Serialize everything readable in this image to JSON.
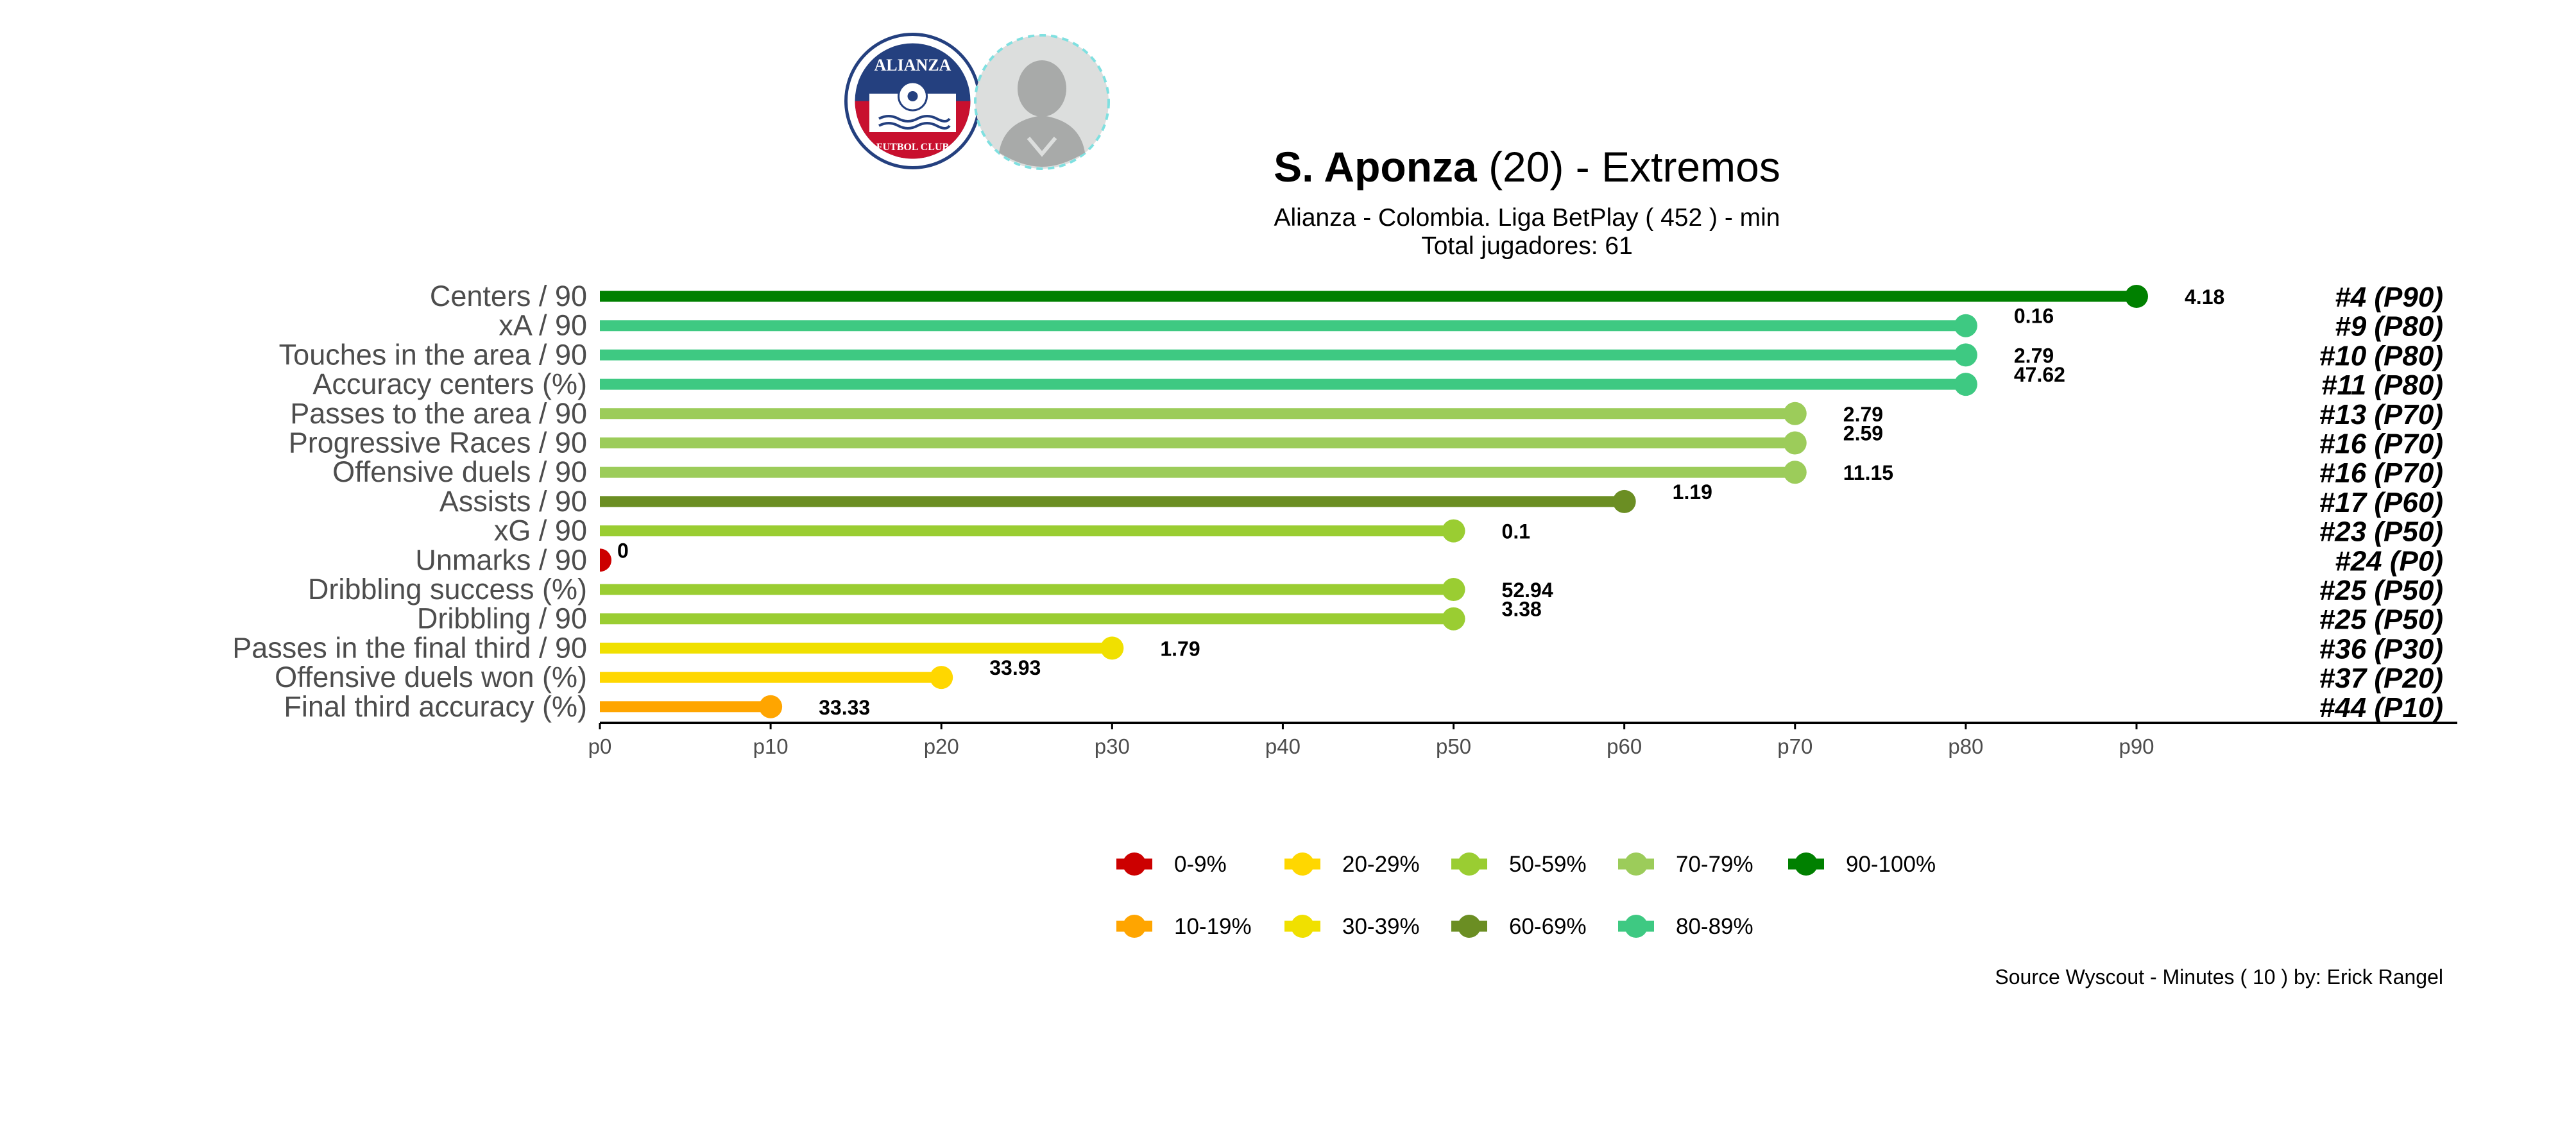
{
  "header": {
    "player_name": "S. Aponza",
    "age_text": "(20)",
    "position_text": "-  Extremos",
    "subtitle": "Alianza  -  Colombia. Liga BetPlay  ( 452 ) - min",
    "total_label": "Total jugadores:  61",
    "logo_text_top": "ALIANZA",
    "logo_text_bottom": "FUTBOL CLUB"
  },
  "source_note": "Source Wyscout - Minutes ( 10 ) by: Erick Rangel",
  "colors": {
    "0-9%": "#cc0000",
    "10-19%": "#ffa500",
    "20-29%": "#ffd700",
    "30-39%": "#f0e000",
    "50-59%": "#9acd32",
    "60-69%": "#6b8e23",
    "70-79%": "#9ccc5a",
    "80-89%": "#3ec982",
    "90-100%": "#008000"
  },
  "chart_data": {
    "type": "lollipop",
    "title": "S. Aponza (20) -  Extremos",
    "xlim": [
      0,
      90
    ],
    "x_ticks": [
      "p0",
      "p10",
      "p20",
      "p30",
      "p40",
      "p50",
      "p60",
      "p70",
      "p80",
      "p90"
    ],
    "legend": {
      "position": "bottom",
      "items": [
        "0-9%",
        "10-19%",
        "20-29%",
        "30-39%",
        "50-59%",
        "60-69%",
        "70-79%",
        "80-89%",
        "90-100%"
      ]
    },
    "rows": [
      {
        "metric": "Centers / 90",
        "percentile": 90,
        "value": "4.18",
        "rank": "#4 (P90)",
        "band": "90-100%"
      },
      {
        "metric": "xA / 90",
        "percentile": 80,
        "value": "0.16",
        "rank": "#9 (P80)",
        "band": "80-89%"
      },
      {
        "metric": "Touches in the area / 90",
        "percentile": 80,
        "value": "2.79",
        "rank": "#10 (P80)",
        "band": "80-89%"
      },
      {
        "metric": "Accuracy centers (%)",
        "percentile": 80,
        "value": "47.62",
        "rank": "#11 (P80)",
        "band": "80-89%"
      },
      {
        "metric": "Passes to the area / 90",
        "percentile": 70,
        "value": "2.79",
        "rank": "#13 (P70)",
        "band": "70-79%"
      },
      {
        "metric": "Progressive Races / 90",
        "percentile": 70,
        "value": "2.59",
        "rank": "#16 (P70)",
        "band": "70-79%"
      },
      {
        "metric": "Offensive duels / 90",
        "percentile": 70,
        "value": "11.15",
        "rank": "#16 (P70)",
        "band": "70-79%"
      },
      {
        "metric": "Assists / 90",
        "percentile": 60,
        "value": "1.19",
        "rank": "#17 (P60)",
        "band": "60-69%"
      },
      {
        "metric": "xG / 90",
        "percentile": 50,
        "value": "0.1",
        "rank": "#23 (P50)",
        "band": "50-59%"
      },
      {
        "metric": "Unmarks / 90",
        "percentile": 0,
        "value": "0",
        "rank": "#24 (P0)",
        "band": "0-9%"
      },
      {
        "metric": "Dribbling success (%)",
        "percentile": 50,
        "value": "52.94",
        "rank": "#25 (P50)",
        "band": "50-59%"
      },
      {
        "metric": "Dribbling / 90",
        "percentile": 50,
        "value": "3.38",
        "rank": "#25 (P50)",
        "band": "50-59%"
      },
      {
        "metric": "Passes in the final third / 90",
        "percentile": 30,
        "value": "1.79",
        "rank": "#36 (P30)",
        "band": "30-39%"
      },
      {
        "metric": "Offensive duels won (%)",
        "percentile": 20,
        "value": "33.93",
        "rank": "#37 (P20)",
        "band": "20-29%"
      },
      {
        "metric": "Final third accuracy (%)",
        "percentile": 10,
        "value": "33.33",
        "rank": "#44 (P10)",
        "band": "10-19%"
      }
    ]
  }
}
